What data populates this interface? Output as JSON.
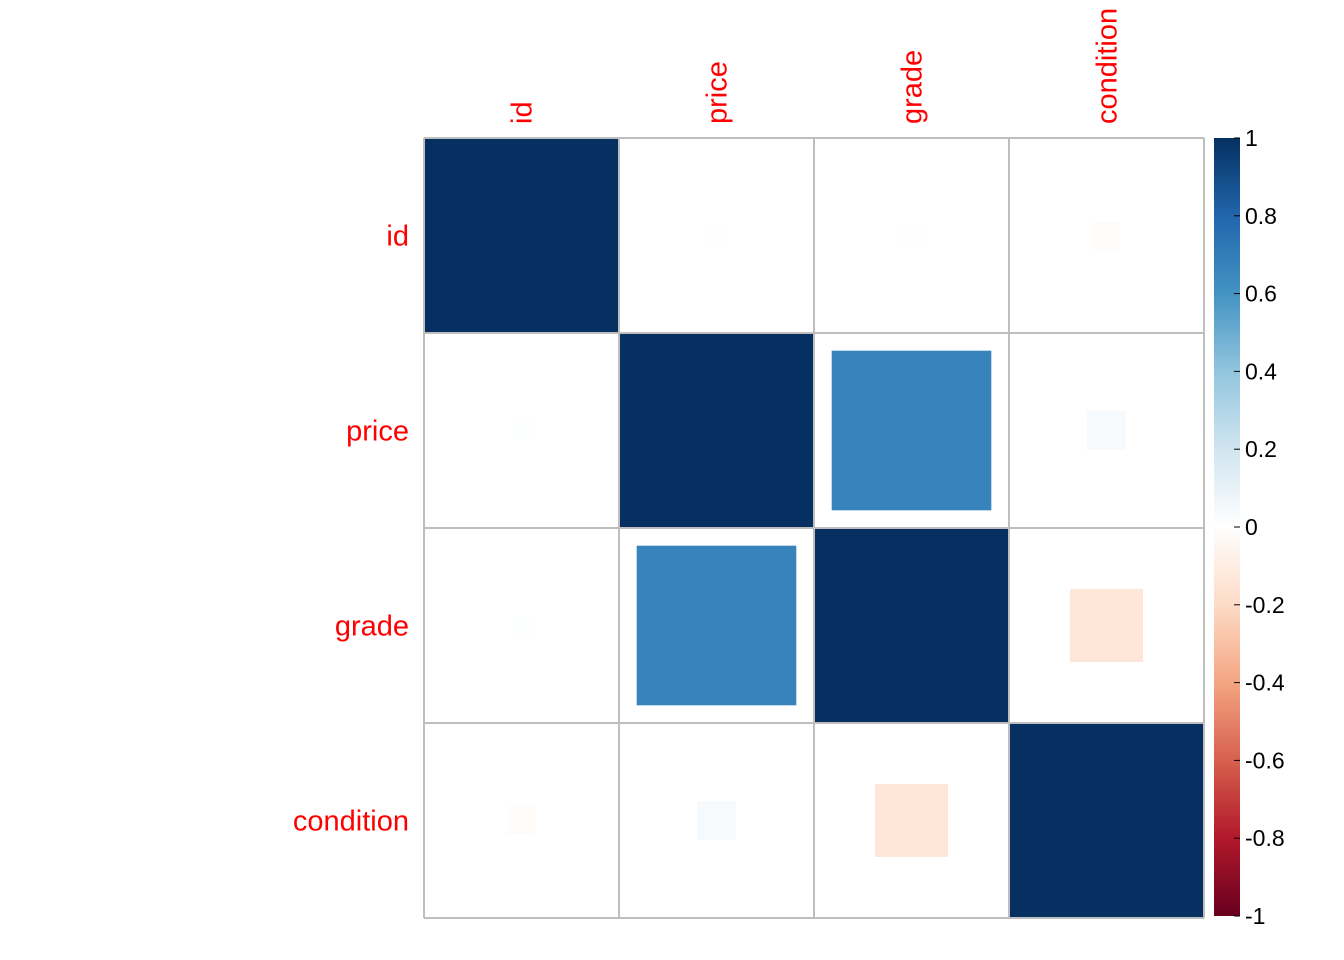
{
  "chart_data": {
    "type": "heatmap",
    "variables": [
      "id",
      "price",
      "grade",
      "condition"
    ],
    "x_labels": [
      "id",
      "price",
      "grade",
      "condition"
    ],
    "y_labels": [
      "id",
      "price",
      "grade",
      "condition"
    ],
    "matrix": [
      [
        1.0,
        0.01,
        0.01,
        -0.02
      ],
      [
        0.01,
        1.0,
        0.67,
        0.04
      ],
      [
        0.01,
        0.67,
        1.0,
        -0.14
      ],
      [
        -0.02,
        0.04,
        -0.14,
        1.0
      ]
    ],
    "colorbar": {
      "range": [
        -1,
        1
      ],
      "ticks": [
        "1",
        "0.8",
        "0.6",
        "0.4",
        "0.2",
        "0",
        "-0.2",
        "-0.4",
        "-0.6",
        "-0.8",
        "-1"
      ],
      "tick_values": [
        1,
        0.8,
        0.6,
        0.4,
        0.2,
        0,
        -0.2,
        -0.4,
        -0.6,
        -0.8,
        -1
      ],
      "stops": [
        {
          "v": -1.0,
          "color": "#67001F"
        },
        {
          "v": -0.8,
          "color": "#B2182B"
        },
        {
          "v": -0.6,
          "color": "#D6604D"
        },
        {
          "v": -0.4,
          "color": "#F4A582"
        },
        {
          "v": -0.2,
          "color": "#FDDBC7"
        },
        {
          "v": 0.0,
          "color": "#FFFFFF"
        },
        {
          "v": 0.2,
          "color": "#D1E5F0"
        },
        {
          "v": 0.4,
          "color": "#92C5DE"
        },
        {
          "v": 0.6,
          "color": "#4393C3"
        },
        {
          "v": 0.8,
          "color": "#2166AC"
        },
        {
          "v": 1.0,
          "color": "#053061"
        }
      ]
    },
    "label_color": "#FF0000",
    "grid_color": "#BEBEBE",
    "square_size": "proportional to |r|"
  }
}
